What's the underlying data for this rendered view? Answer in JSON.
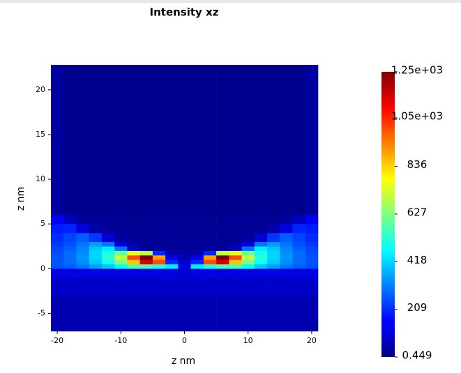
{
  "chart_data": {
    "type": "heatmap",
    "title": "Intensity xz",
    "xlabel": "z nm",
    "ylabel": "z nm",
    "x_edges": [
      -21,
      -19,
      -17,
      -15,
      -13,
      -11,
      -9,
      -7,
      -5,
      -3,
      -1,
      1,
      3,
      5,
      7,
      9,
      11,
      13,
      15,
      17,
      19,
      21
    ],
    "y_edges": [
      -7,
      -3,
      -1,
      0,
      0.5,
      1,
      1.5,
      2,
      2.5,
      3,
      4,
      5,
      6,
      22.8
    ],
    "z": [
      [
        60,
        60,
        60,
        60,
        60,
        60,
        60,
        60,
        60,
        60,
        60,
        60,
        60,
        60,
        60,
        60,
        60,
        60,
        60,
        60,
        60
      ],
      [
        90,
        90,
        90,
        90,
        90,
        90,
        90,
        90,
        90,
        90,
        90,
        90,
        90,
        90,
        90,
        90,
        90,
        90,
        90,
        90,
        90
      ],
      [
        120,
        120,
        120,
        120,
        120,
        120,
        120,
        120,
        120,
        120,
        100,
        120,
        120,
        120,
        120,
        120,
        120,
        120,
        120,
        120,
        120
      ],
      [
        250,
        270,
        300,
        350,
        400,
        480,
        560,
        560,
        500,
        450,
        120,
        450,
        500,
        560,
        560,
        480,
        400,
        350,
        300,
        270,
        250
      ],
      [
        260,
        290,
        330,
        400,
        480,
        620,
        850,
        1150,
        1000,
        200,
        100,
        200,
        1000,
        1150,
        850,
        620,
        480,
        400,
        330,
        290,
        260
      ],
      [
        260,
        290,
        340,
        420,
        520,
        700,
        1000,
        1250,
        900,
        150,
        60,
        150,
        900,
        1250,
        1000,
        700,
        520,
        420,
        340,
        290,
        260
      ],
      [
        250,
        290,
        330,
        420,
        500,
        600,
        750,
        700,
        200,
        60,
        40,
        60,
        200,
        700,
        750,
        600,
        500,
        420,
        330,
        290,
        250
      ],
      [
        240,
        270,
        320,
        400,
        450,
        300,
        100,
        40,
        30,
        30,
        30,
        30,
        30,
        40,
        100,
        300,
        450,
        400,
        320,
        270,
        240
      ],
      [
        230,
        260,
        300,
        350,
        300,
        120,
        40,
        30,
        30,
        30,
        30,
        30,
        30,
        30,
        40,
        120,
        300,
        350,
        300,
        260,
        230
      ],
      [
        210,
        240,
        270,
        220,
        100,
        40,
        30,
        30,
        30,
        30,
        30,
        30,
        30,
        30,
        30,
        40,
        100,
        220,
        270,
        240,
        210
      ],
      [
        190,
        200,
        120,
        50,
        30,
        25,
        25,
        25,
        25,
        25,
        25,
        25,
        25,
        25,
        25,
        25,
        30,
        50,
        120,
        200,
        190
      ],
      [
        150,
        80,
        40,
        25,
        25,
        25,
        25,
        25,
        25,
        25,
        25,
        25,
        25,
        25,
        25,
        25,
        25,
        25,
        40,
        80,
        150
      ],
      [
        40,
        20,
        20,
        20,
        20,
        20,
        20,
        20,
        20,
        20,
        20,
        20,
        20,
        20,
        20,
        20,
        20,
        20,
        20,
        20,
        40
      ]
    ],
    "colormap": "jet",
    "xlim": [
      -21,
      21
    ],
    "ylim": [
      -7,
      22.8
    ],
    "xticks": [
      -20,
      -10,
      0,
      10,
      20
    ],
    "yticks": [
      -5,
      0,
      5,
      10,
      15,
      20
    ],
    "clim": [
      0.449,
      1250
    ],
    "cticks": [
      {
        "value": 1250,
        "label": "1.25e+03"
      },
      {
        "value": 1048,
        "label": "1.05e+03"
      },
      836,
      627,
      418,
      209,
      0.449
    ]
  }
}
